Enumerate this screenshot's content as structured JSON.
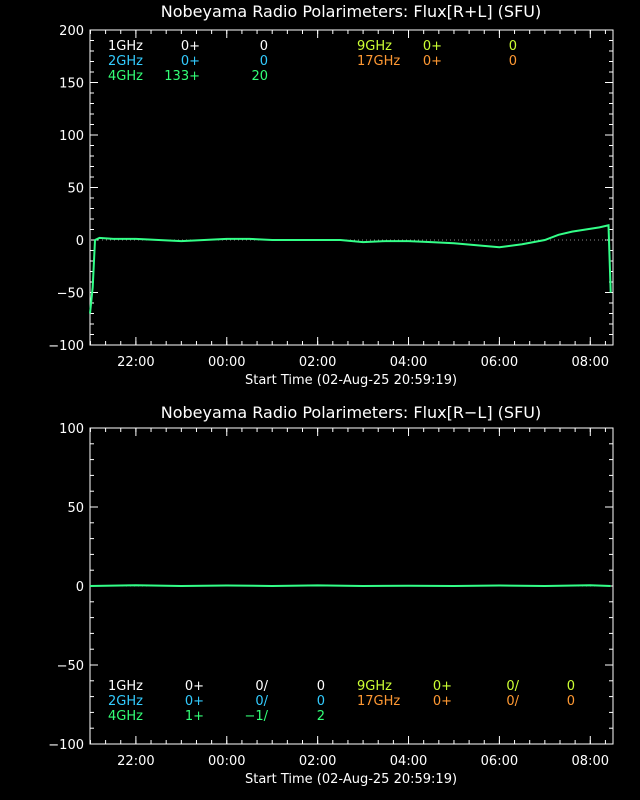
{
  "chart_data": [
    {
      "type": "line",
      "title": "Nobeyama Radio Polarimeters: Flux[R+L] (SFU)",
      "xlabel": "Start Time (02-Aug-25 20:59:19)",
      "ylabel": "",
      "x_range_hours": [
        20.99,
        32.5
      ],
      "ylim": [
        -100,
        200
      ],
      "y_ticks": [
        -100,
        -50,
        0,
        50,
        100,
        150,
        200
      ],
      "x_ticks": [
        "22:00",
        "00:00",
        "02:00",
        "04:00",
        "06:00",
        "08:00"
      ],
      "legend": [
        {
          "label": "1GHz",
          "value": "0+",
          "extra": "0",
          "color": "#ffffff"
        },
        {
          "label": "2GHz",
          "value": "0+",
          "extra": "0",
          "color": "#33ccff"
        },
        {
          "label": "4GHz",
          "value": "133+",
          "extra": "20",
          "color": "#33ff77"
        },
        {
          "label": "9GHz",
          "value": "0+",
          "extra": "0",
          "color": "#ccff33"
        },
        {
          "label": "17GHz",
          "value": "0+",
          "extra": "0",
          "color": "#ff9933"
        }
      ],
      "series": [
        {
          "color": "#33ff88",
          "x": [
            20.99,
            21.05,
            21.1,
            21.2,
            21.5,
            22.0,
            22.5,
            23.0,
            23.5,
            24.0,
            24.5,
            25.0,
            25.5,
            26.0,
            26.5,
            27.0,
            27.5,
            28.0,
            28.5,
            29.0,
            29.5,
            30.0,
            30.5,
            31.0,
            31.3,
            31.6,
            31.9,
            32.2,
            32.4,
            32.45
          ],
          "y": [
            -70,
            -45,
            0,
            2,
            1,
            1,
            0,
            -1,
            0,
            1,
            1,
            0,
            0,
            0,
            0,
            -2,
            -1,
            -1,
            -2,
            -3,
            -5,
            -7,
            -4,
            0,
            5,
            8,
            10,
            12,
            14,
            -50
          ]
        }
      ]
    },
    {
      "type": "line",
      "title": "Nobeyama Radio Polarimeters: Flux[R−L] (SFU)",
      "xlabel": "Start Time (02-Aug-25 20:59:19)",
      "ylabel": "",
      "x_range_hours": [
        20.99,
        32.5
      ],
      "ylim": [
        -100,
        100
      ],
      "y_ticks": [
        -100,
        -50,
        0,
        50,
        100
      ],
      "x_ticks": [
        "22:00",
        "00:00",
        "02:00",
        "04:00",
        "06:00",
        "08:00"
      ],
      "legend": [
        {
          "label": "1GHz",
          "value": "0+",
          "ratio": "0/",
          "extra": "0",
          "color": "#ffffff"
        },
        {
          "label": "2GHz",
          "value": "0+",
          "ratio": "0/",
          "extra": "0",
          "color": "#33ccff"
        },
        {
          "label": "4GHz",
          "value": "1+",
          "ratio": "−1/",
          "extra": "2",
          "color": "#33ff77"
        },
        {
          "label": "9GHz",
          "value": "0+",
          "ratio": "0/",
          "extra": "0",
          "color": "#ccff33"
        },
        {
          "label": "17GHz",
          "value": "0+",
          "ratio": "0/",
          "extra": "0",
          "color": "#ff9933"
        }
      ],
      "series": [
        {
          "color": "#33ff88",
          "x": [
            20.99,
            22.0,
            23.0,
            24.0,
            25.0,
            26.0,
            27.0,
            28.0,
            29.0,
            30.0,
            31.0,
            32.0,
            32.45
          ],
          "y": [
            0,
            0.5,
            0,
            0.3,
            0,
            0.4,
            0,
            0.2,
            0,
            0.3,
            0,
            0.5,
            0
          ]
        }
      ]
    }
  ]
}
